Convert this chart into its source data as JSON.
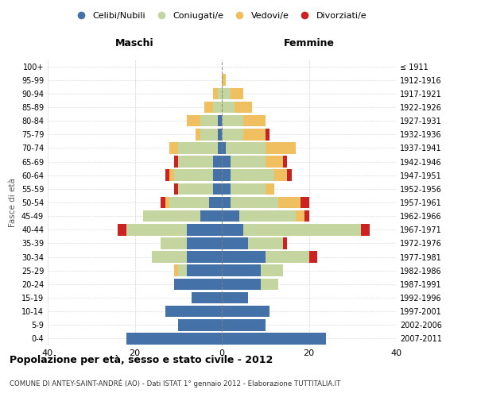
{
  "age_groups": [
    "0-4",
    "5-9",
    "10-14",
    "15-19",
    "20-24",
    "25-29",
    "30-34",
    "35-39",
    "40-44",
    "45-49",
    "50-54",
    "55-59",
    "60-64",
    "65-69",
    "70-74",
    "75-79",
    "80-84",
    "85-89",
    "90-94",
    "95-99",
    "100+"
  ],
  "birth_years": [
    "2007-2011",
    "2002-2006",
    "1997-2001",
    "1992-1996",
    "1987-1991",
    "1982-1986",
    "1977-1981",
    "1972-1976",
    "1967-1971",
    "1962-1966",
    "1957-1961",
    "1952-1956",
    "1947-1951",
    "1942-1946",
    "1937-1941",
    "1932-1936",
    "1927-1931",
    "1922-1926",
    "1917-1921",
    "1912-1916",
    "≤ 1911"
  ],
  "colors": {
    "celibi": "#4472a8",
    "coniugati": "#c5d5a0",
    "vedovi": "#f0c060",
    "divorziati": "#cc2222"
  },
  "male": {
    "celibi": [
      22,
      10,
      13,
      7,
      11,
      8,
      8,
      8,
      8,
      5,
      3,
      2,
      2,
      2,
      1,
      1,
      1,
      0,
      0,
      0,
      0
    ],
    "coniugati": [
      0,
      0,
      0,
      0,
      0,
      2,
      8,
      6,
      14,
      13,
      9,
      8,
      9,
      8,
      9,
      4,
      4,
      2,
      1,
      0,
      0
    ],
    "vedovi": [
      0,
      0,
      0,
      0,
      0,
      1,
      0,
      0,
      0,
      0,
      1,
      0,
      1,
      0,
      2,
      1,
      3,
      2,
      1,
      0,
      0
    ],
    "divorziati": [
      0,
      0,
      0,
      0,
      0,
      0,
      0,
      0,
      2,
      0,
      1,
      1,
      1,
      1,
      0,
      0,
      0,
      0,
      0,
      0,
      0
    ]
  },
  "female": {
    "nubili": [
      24,
      10,
      11,
      6,
      9,
      9,
      10,
      6,
      5,
      4,
      2,
      2,
      2,
      2,
      1,
      0,
      0,
      0,
      0,
      0,
      0
    ],
    "coniugate": [
      0,
      0,
      0,
      0,
      4,
      5,
      10,
      8,
      27,
      13,
      11,
      8,
      10,
      8,
      9,
      5,
      5,
      3,
      2,
      0,
      0
    ],
    "vedove": [
      0,
      0,
      0,
      0,
      0,
      0,
      0,
      0,
      0,
      2,
      5,
      2,
      3,
      4,
      7,
      5,
      5,
      4,
      3,
      1,
      0
    ],
    "divorziate": [
      0,
      0,
      0,
      0,
      0,
      0,
      2,
      1,
      2,
      1,
      2,
      0,
      1,
      1,
      0,
      1,
      0,
      0,
      0,
      0,
      0
    ]
  },
  "xlim": 40,
  "title": "Popolazione per età, sesso e stato civile - 2012",
  "subtitle": "COMUNE DI ANTEY-SAINT-ANDRÉ (AO) - Dati ISTAT 1° gennaio 2012 - Elaborazione TUTTITALIA.IT",
  "xlabel_left": "Maschi",
  "xlabel_right": "Femmine",
  "ylabel_left": "Fasce di età",
  "legend_labels": [
    "Celibi/Nubili",
    "Coniugati/e",
    "Vedovi/e",
    "Divorziati/e"
  ]
}
